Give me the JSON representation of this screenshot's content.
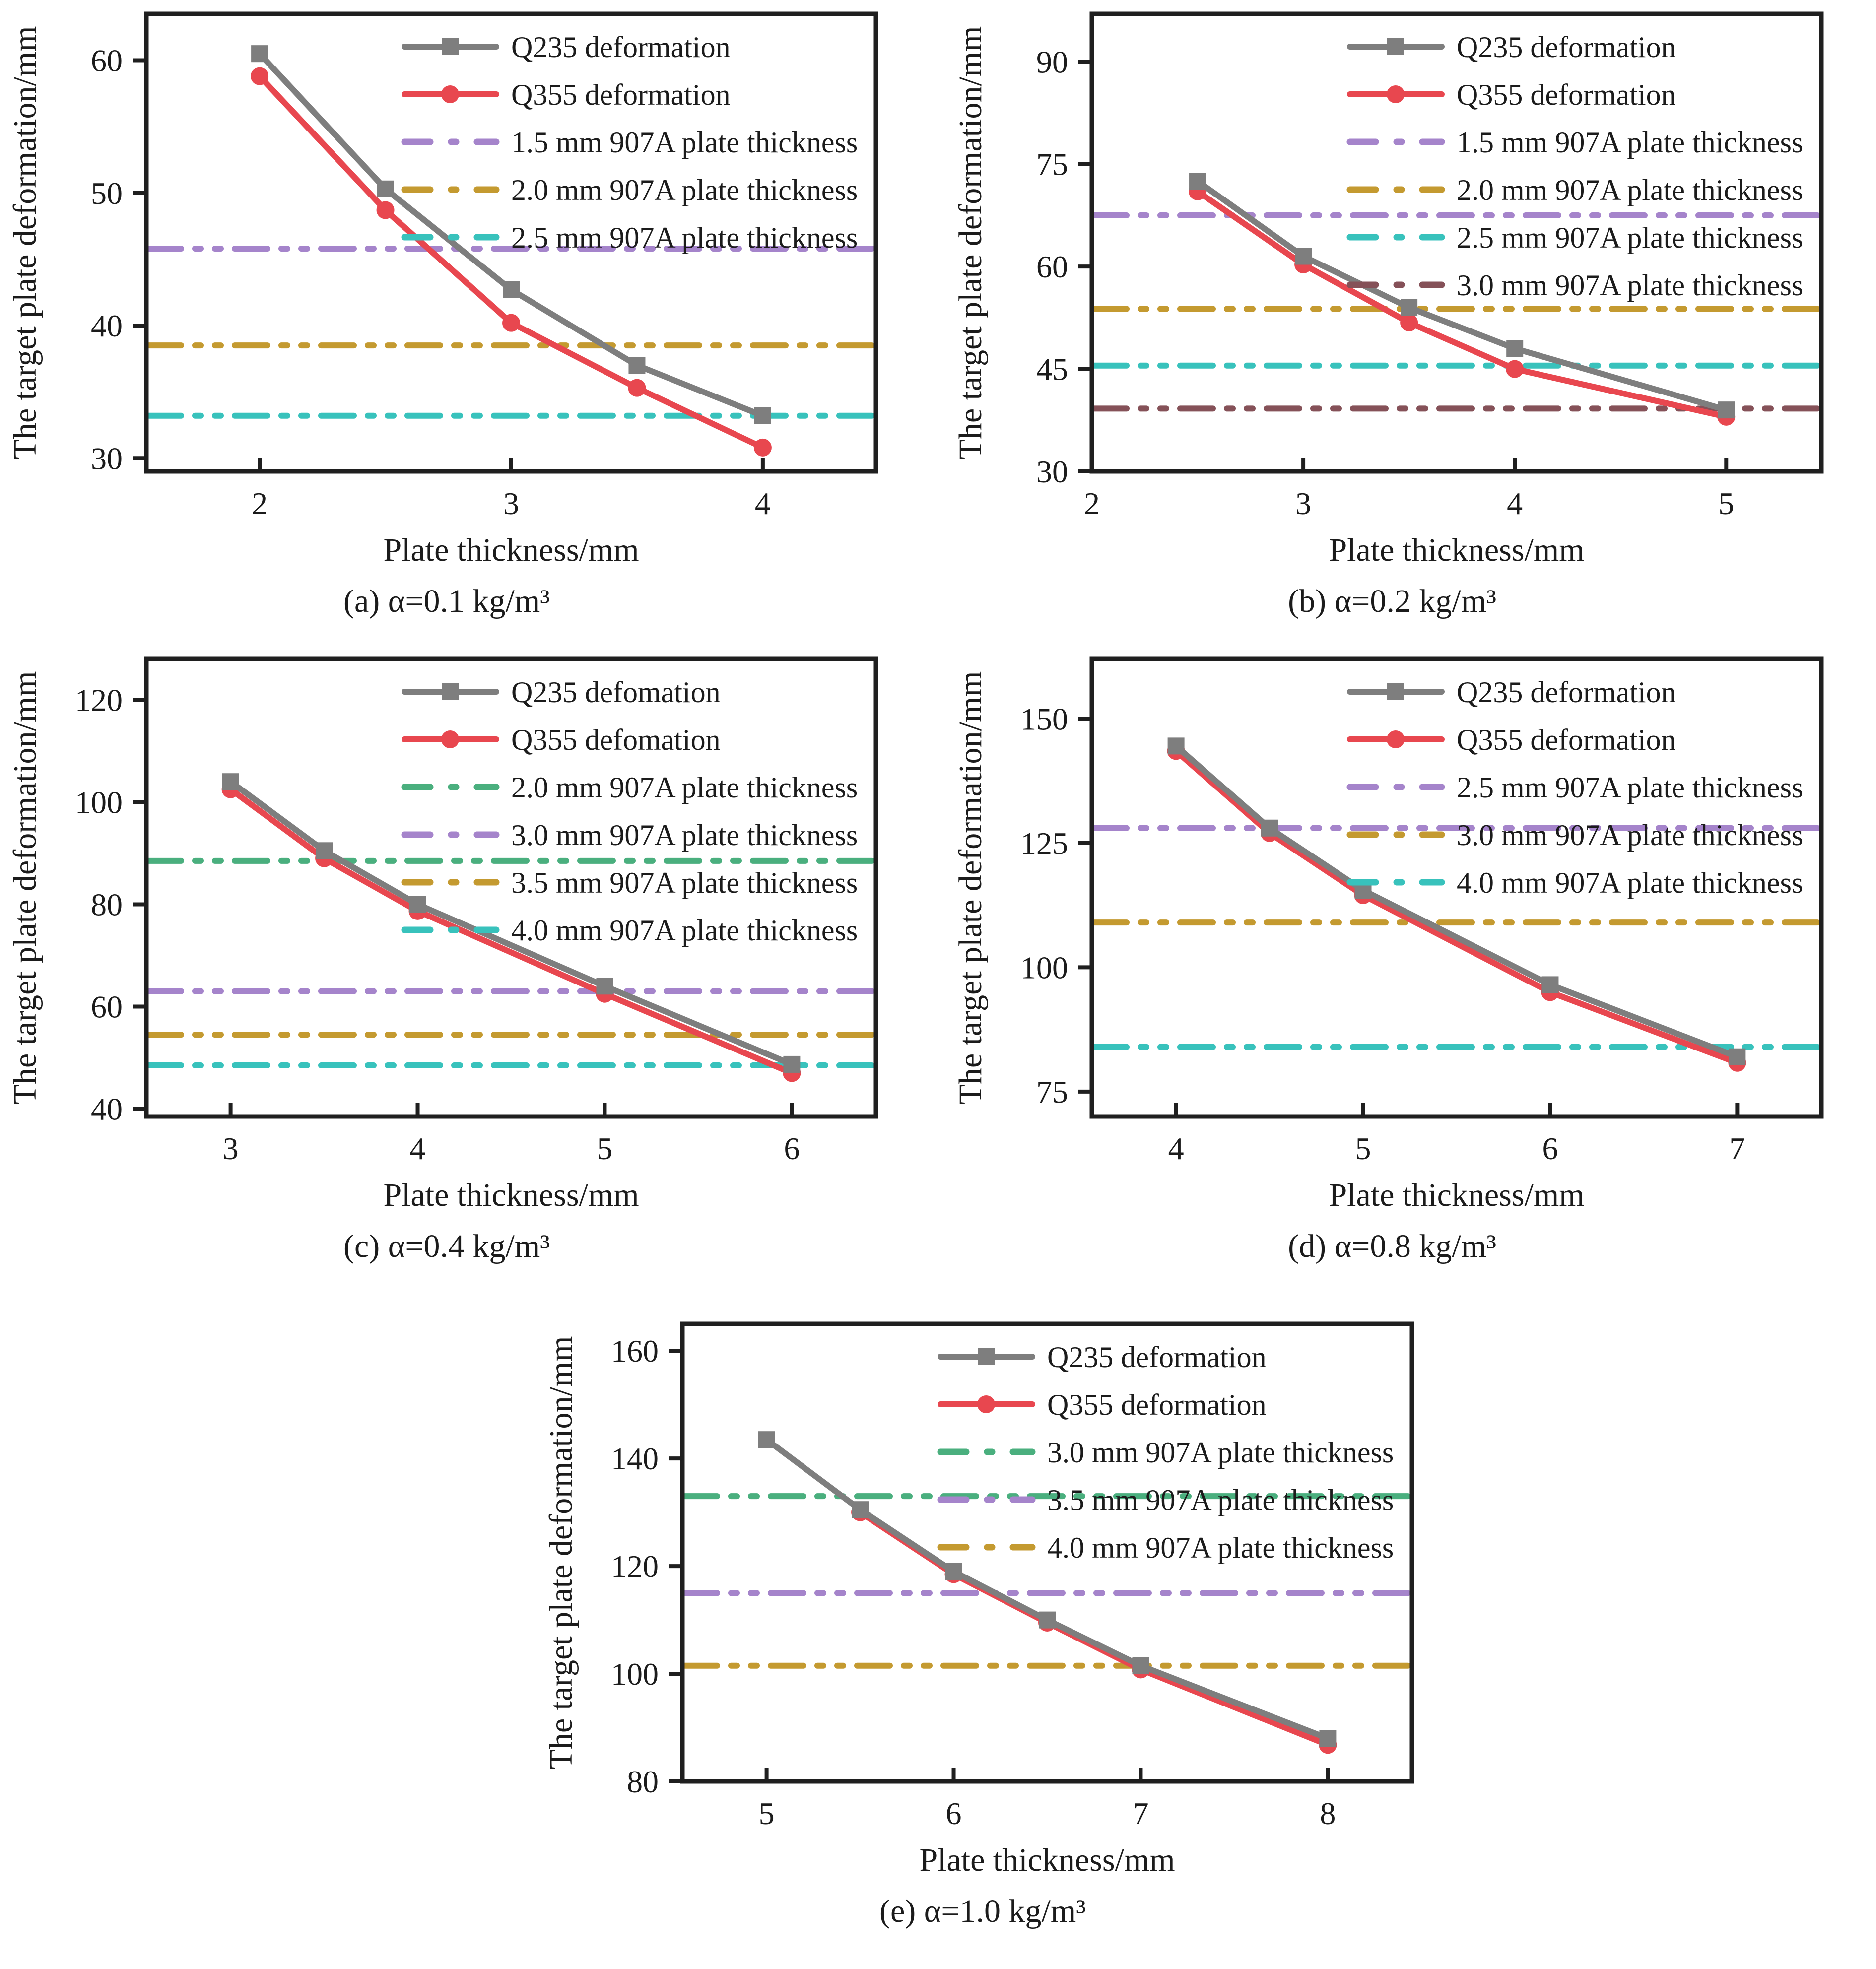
{
  "page": {
    "background": "#ffffff"
  },
  "colors": {
    "axis": "#1f1f1f",
    "q235": "#7e7e7e",
    "q355": "#e8474f",
    "purple": "#a584cb",
    "mustard": "#c49a30",
    "teal": "#38c2bc",
    "green": "#4aaf7e",
    "brown": "#855158"
  },
  "chart_data": [
    {
      "id": "a",
      "type": "line",
      "caption": "(a) α=0.1 kg/m³",
      "xlabel": "Plate thickness/mm",
      "ylabel": "The target plate deformation/mm",
      "xlim": [
        1.55,
        4.45
      ],
      "ylim": [
        29,
        63.5
      ],
      "x_ticks": [
        2,
        3,
        4
      ],
      "y_ticks": [
        30,
        40,
        50,
        60
      ],
      "grid": false,
      "legend_position": "top-right",
      "series": [
        {
          "name": "Q235 deformation",
          "color": "q235",
          "marker": "square",
          "x": [
            2,
            2.5,
            3,
            3.5,
            4
          ],
          "y": [
            60.5,
            50.3,
            42.7,
            37.0,
            33.2
          ]
        },
        {
          "name": "Q355 deformation",
          "color": "q355",
          "marker": "circle",
          "x": [
            2,
            2.5,
            3,
            3.5,
            4
          ],
          "y": [
            58.8,
            48.7,
            40.2,
            35.3,
            30.8
          ]
        }
      ],
      "thresholds": [
        {
          "name": "1.5 mm 907A plate thickness",
          "color": "purple",
          "y": 45.8
        },
        {
          "name": "2.0 mm 907A plate thickness",
          "color": "mustard",
          "y": 38.5
        },
        {
          "name": "2.5 mm 907A plate thickness",
          "color": "teal",
          "y": 33.2
        }
      ]
    },
    {
      "id": "b",
      "type": "line",
      "caption": "(b) α=0.2 kg/m³",
      "xlabel": "Plate thickness/mm",
      "ylabel": "The target plate deformation/mm",
      "xlim": [
        2,
        5.45
      ],
      "ylim": [
        30,
        97
      ],
      "x_ticks": [
        2,
        3,
        4,
        5
      ],
      "y_ticks": [
        30,
        45,
        60,
        75,
        90
      ],
      "grid": false,
      "legend_position": "top-right",
      "series": [
        {
          "name": "Q235 deformation",
          "color": "q235",
          "marker": "square",
          "x": [
            2.5,
            3,
            3.5,
            4,
            5
          ],
          "y": [
            72.5,
            61.5,
            54.0,
            48.0,
            39.0
          ]
        },
        {
          "name": "Q355 deformation",
          "color": "q355",
          "marker": "circle",
          "x": [
            2.5,
            3,
            3.5,
            4,
            5
          ],
          "y": [
            71.0,
            60.3,
            51.8,
            45.0,
            38.0
          ]
        }
      ],
      "thresholds": [
        {
          "name": "1.5 mm 907A plate thickness",
          "color": "purple",
          "y": 67.5
        },
        {
          "name": "2.0 mm 907A plate thickness",
          "color": "mustard",
          "y": 53.8
        },
        {
          "name": "2.5 mm 907A plate thickness",
          "color": "teal",
          "y": 45.5
        },
        {
          "name": "3.0 mm 907A plate thickness",
          "color": "brown",
          "y": 39.2
        }
      ]
    },
    {
      "id": "c",
      "type": "line",
      "caption": "(c) α=0.4 kg/m³",
      "xlabel": "Plate thickness/mm",
      "ylabel": "The target plate deformation/mm",
      "xlim": [
        2.55,
        6.45
      ],
      "ylim": [
        38.5,
        128
      ],
      "x_ticks": [
        3,
        4,
        5,
        6
      ],
      "y_ticks": [
        40,
        60,
        80,
        100,
        120
      ],
      "grid": false,
      "legend_position": "top-right",
      "series": [
        {
          "name": "Q235 defomation",
          "color": "q235",
          "marker": "square",
          "x": [
            3,
            3.5,
            4,
            5,
            6
          ],
          "y": [
            104,
            90.5,
            80,
            64,
            48.7
          ]
        },
        {
          "name": "Q355 defomation",
          "color": "q355",
          "marker": "circle",
          "x": [
            3,
            3.5,
            4,
            5,
            6
          ],
          "y": [
            102.5,
            89,
            78.7,
            62.5,
            47
          ]
        }
      ],
      "thresholds": [
        {
          "name": "2.0 mm 907A plate thickness",
          "color": "green",
          "y": 88.5
        },
        {
          "name": "3.0 mm 907A plate thickness",
          "color": "purple",
          "y": 63.0
        },
        {
          "name": "3.5 mm 907A plate thickness",
          "color": "mustard",
          "y": 54.5
        },
        {
          "name": "4.0 mm 907A plate thickness",
          "color": "teal",
          "y": 48.5
        }
      ]
    },
    {
      "id": "d",
      "type": "line",
      "caption": "(d) α=0.8 kg/m³",
      "xlabel": "Plate thickness/mm",
      "ylabel": "The target plate deformation/mm",
      "xlim": [
        3.55,
        7.45
      ],
      "ylim": [
        70,
        162
      ],
      "x_ticks": [
        4,
        5,
        6,
        7
      ],
      "y_ticks": [
        75,
        100,
        125,
        150
      ],
      "grid": false,
      "legend_position": "top-right",
      "series": [
        {
          "name": "Q235 deformation",
          "color": "q235",
          "marker": "square",
          "x": [
            4,
            4.5,
            5,
            6,
            7
          ],
          "y": [
            144.5,
            128,
            115.5,
            96.5,
            82
          ]
        },
        {
          "name": "Q355 deformation",
          "color": "q355",
          "marker": "circle",
          "x": [
            4,
            4.5,
            5,
            6,
            7
          ],
          "y": [
            143.5,
            127,
            114.5,
            95,
            80.8
          ]
        }
      ],
      "thresholds": [
        {
          "name": "2.5 mm 907A plate thickness",
          "color": "purple",
          "y": 128
        },
        {
          "name": "3.0 mm 907A plate thickness",
          "color": "mustard",
          "y": 109
        },
        {
          "name": "4.0 mm 907A plate thickness",
          "color": "teal",
          "y": 84
        }
      ]
    },
    {
      "id": "e",
      "type": "line",
      "caption": "(e) α=1.0 kg/m³",
      "xlabel": "Plate thickness/mm",
      "ylabel": "The target plate deformation/mm",
      "xlim": [
        4.55,
        8.45
      ],
      "ylim": [
        80,
        165
      ],
      "x_ticks": [
        5,
        6,
        7,
        8
      ],
      "y_ticks": [
        80,
        100,
        120,
        140,
        160
      ],
      "grid": false,
      "legend_position": "top-right",
      "series": [
        {
          "name": "Q235 deformation",
          "color": "q235",
          "marker": "square",
          "x": [
            5,
            5.5,
            6,
            6.5,
            7,
            8
          ],
          "y": [
            143.5,
            130.5,
            119,
            110,
            101.5,
            88
          ]
        },
        {
          "name": "Q355 deformation",
          "color": "q355",
          "marker": "circle",
          "x": [
            5.5,
            6,
            6.5,
            7,
            8
          ],
          "y": [
            130,
            118.5,
            109.5,
            100.8,
            86.8
          ]
        }
      ],
      "thresholds": [
        {
          "name": "3.0 mm 907A plate thickness",
          "color": "green",
          "y": 133
        },
        {
          "name": "3.5 mm 907A plate thickness",
          "color": "purple",
          "y": 115
        },
        {
          "name": "4.0 mm 907A plate thickness",
          "color": "mustard",
          "y": 101.5
        }
      ]
    }
  ]
}
